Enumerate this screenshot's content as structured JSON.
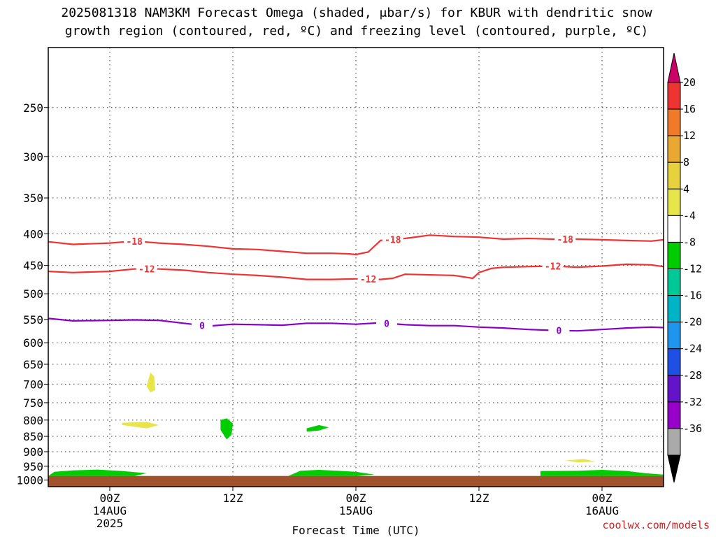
{
  "title": {
    "line1": "2025081318 NAM3KM Forecast Omega (shaded, μbar/s) for KBUR with dendritic snow",
    "line2": "growth region (contoured, red, ºC) and freezing level (contoured, purple, ºC)"
  },
  "credit": "coolwx.com/models",
  "chart_data": {
    "type": "time-height cross section",
    "xlabel": "Forecast Time (UTC)",
    "x_unit": "hours since 2025-08-13 18Z",
    "xlim": [
      -5,
      45
    ],
    "x_ticks": [
      {
        "x": 0,
        "lines": [
          "00Z",
          "14AUG",
          "2025"
        ]
      },
      {
        "x": 10,
        "lines": [
          "12Z"
        ]
      },
      {
        "x": 20,
        "lines": [
          "00Z",
          "15AUG"
        ]
      },
      {
        "x": 30,
        "lines": [
          "12Z"
        ]
      },
      {
        "x": 40,
        "lines": [
          "00Z",
          "16AUG"
        ]
      }
    ],
    "ylabel": "",
    "y_unit": "hPa",
    "y_scale": "log",
    "ylim": [
      1025,
      200
    ],
    "y_ticks": [
      250,
      300,
      350,
      400,
      450,
      500,
      550,
      600,
      650,
      700,
      750,
      800,
      850,
      900,
      950,
      1000
    ],
    "grid": true,
    "series": [
      {
        "name": "-18",
        "kind": "contour",
        "color": "#ee3333",
        "x": [
          -5,
          -3,
          0,
          2,
          4,
          6,
          8,
          10,
          12,
          14,
          16,
          18,
          19.5,
          20,
          21,
          22,
          24,
          26,
          28,
          30,
          32,
          34,
          36,
          38,
          40,
          42,
          44,
          45
        ],
        "p": [
          412,
          416,
          414,
          411,
          414,
          416,
          419,
          423,
          424,
          427,
          430,
          430,
          431,
          432,
          428,
          410,
          407,
          402,
          404,
          405,
          408,
          407,
          408,
          408,
          409,
          410,
          411,
          409
        ],
        "labels": [
          {
            "x": 2,
            "text": "-18"
          },
          {
            "x": 23,
            "text": "-18"
          },
          {
            "x": 37,
            "text": "-18"
          }
        ]
      },
      {
        "name": "-12",
        "kind": "contour",
        "color": "#ee3333",
        "x": [
          -5,
          -3,
          0,
          2,
          4,
          6,
          8,
          10,
          12,
          14,
          16,
          18,
          20,
          22,
          23,
          24,
          26,
          28,
          29.5,
          30,
          31,
          32,
          34,
          36,
          38,
          40,
          42,
          44,
          45
        ],
        "p": [
          460,
          462,
          460,
          456,
          456,
          458,
          462,
          465,
          467,
          470,
          474,
          474,
          473,
          474,
          472,
          465,
          466,
          467,
          472,
          462,
          455,
          453,
          452,
          451,
          453,
          451,
          448,
          449,
          452
        ],
        "labels": [
          {
            "x": 3,
            "text": "-12"
          },
          {
            "x": 21,
            "text": "-12"
          },
          {
            "x": 36,
            "text": "-12"
          }
        ]
      },
      {
        "name": "0",
        "kind": "contour",
        "color": "#8800cc",
        "x": [
          -5,
          -3,
          0,
          2,
          4,
          6,
          8,
          10,
          12,
          14,
          16,
          18,
          20,
          22,
          24,
          26,
          28,
          30,
          32,
          34,
          36,
          38,
          40,
          42,
          44,
          45
        ],
        "p": [
          548,
          553,
          552,
          551,
          552,
          558,
          564,
          560,
          561,
          562,
          558,
          558,
          560,
          557,
          561,
          563,
          563,
          566,
          568,
          571,
          573,
          574,
          571,
          568,
          566,
          567
        ],
        "labels": [
          {
            "x": 7.5,
            "text": "0"
          },
          {
            "x": 22.5,
            "text": "0"
          },
          {
            "x": 36.5,
            "text": "0"
          }
        ]
      }
    ],
    "shaded_regions": [
      {
        "label": "yellow blob",
        "color": "#e6e64b",
        "points": [
          [
            1,
            808
          ],
          [
            3,
            805
          ],
          [
            4,
            815
          ],
          [
            3,
            825
          ],
          [
            1,
            815
          ]
        ]
      },
      {
        "label": "yellow blob",
        "color": "#e6e64b",
        "points": [
          [
            3.3,
            670
          ],
          [
            3.6,
            680
          ],
          [
            3.7,
            715
          ],
          [
            3.3,
            722
          ],
          [
            3.0,
            705
          ]
        ]
      },
      {
        "label": "green blob",
        "color": "#00cc00",
        "points": [
          [
            9,
            800
          ],
          [
            9.5,
            795
          ],
          [
            10,
            810
          ],
          [
            9.9,
            845
          ],
          [
            9.5,
            860
          ],
          [
            9.0,
            830
          ]
        ]
      },
      {
        "label": "green blob",
        "color": "#00cc00",
        "points": [
          [
            16,
            825
          ],
          [
            17,
            815
          ],
          [
            17.8,
            822
          ],
          [
            17.0,
            832
          ],
          [
            16,
            835
          ]
        ]
      },
      {
        "label": "yellow blob",
        "color": "#e6e64b",
        "points": [
          [
            37,
            930
          ],
          [
            38.5,
            925
          ],
          [
            39.5,
            934
          ],
          [
            38,
            936
          ]
        ]
      },
      {
        "label": "green surface",
        "color": "#00cc00",
        "points": [
          [
            -5,
            985
          ],
          [
            -4.5,
            970
          ],
          [
            -3,
            965
          ],
          [
            -1,
            962
          ],
          [
            1,
            967
          ],
          [
            3,
            975
          ],
          [
            2,
            985
          ]
        ]
      },
      {
        "label": "green surface",
        "color": "#00cc00",
        "points": [
          [
            14.5,
            985
          ],
          [
            15.5,
            966
          ],
          [
            17,
            963
          ],
          [
            18.5,
            966
          ],
          [
            20,
            970
          ],
          [
            21.5,
            980
          ],
          [
            20,
            985
          ]
        ]
      },
      {
        "label": "green surface",
        "color": "#00cc00",
        "points": [
          [
            35,
            985
          ],
          [
            35,
            967
          ],
          [
            38,
            966
          ],
          [
            40,
            963
          ],
          [
            42,
            967
          ],
          [
            43.5,
            975
          ],
          [
            45,
            980
          ],
          [
            45,
            985
          ]
        ]
      }
    ],
    "terrain": {
      "color": "#a0522d",
      "p": 985
    },
    "colorbar": {
      "ticks": [
        "20",
        "16",
        "12",
        "8",
        "4",
        "-4",
        "-8",
        "-12",
        "-16",
        "-20",
        "-24",
        "-28",
        "-32",
        "-36"
      ],
      "colors": [
        "#ee3333",
        "#f07a28",
        "#e8a832",
        "#e6d23c",
        "#e6e64b",
        "#ffffff",
        "#00cc00",
        "#00c896",
        "#00b4c8",
        "#1e96f0",
        "#1e50e6",
        "#6414c8",
        "#9600c8",
        "#aaaaaa"
      ],
      "top_arrow_color": "#cc0066",
      "bottom_arrow_color": "#000000"
    }
  }
}
